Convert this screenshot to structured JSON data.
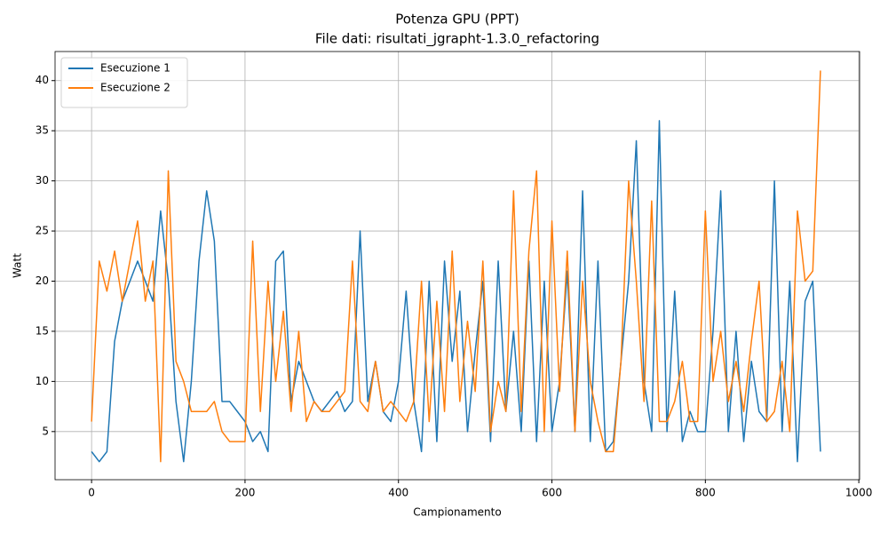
{
  "chart_data": {
    "type": "line",
    "title": "Potenza GPU (PPT)",
    "subtitle": "File dati: risultati_jgrapht-1.3.0_refactoring",
    "x_label": "Campionamento",
    "y_label": "Watt",
    "x": [
      0,
      10,
      20,
      30,
      40,
      50,
      60,
      70,
      80,
      90,
      100,
      110,
      120,
      130,
      140,
      150,
      160,
      170,
      180,
      190,
      200,
      210,
      220,
      230,
      240,
      250,
      260,
      270,
      280,
      290,
      300,
      310,
      320,
      330,
      340,
      350,
      360,
      370,
      380,
      390,
      400,
      410,
      420,
      430,
      440,
      450,
      460,
      470,
      480,
      490,
      500,
      510,
      520,
      530,
      540,
      550,
      560,
      570,
      580,
      590,
      600,
      610,
      620,
      630,
      640,
      650,
      660,
      670,
      680,
      690,
      700,
      710,
      720,
      730,
      740,
      750,
      760,
      770,
      780,
      790,
      800,
      810,
      820,
      830,
      840,
      850,
      860,
      870,
      880,
      890,
      900,
      910,
      920,
      930,
      940,
      950
    ],
    "series": [
      {
        "name": "Esecuzione 1",
        "color": "#1f77b4",
        "values": [
          3,
          2,
          3,
          14,
          18,
          20,
          22,
          20,
          18,
          27,
          20,
          8,
          2,
          10,
          22,
          29,
          24,
          8,
          8,
          7,
          6,
          4,
          5,
          3,
          22,
          23,
          8,
          12,
          10,
          8,
          7,
          8,
          9,
          7,
          8,
          25,
          8,
          12,
          7,
          6,
          10,
          19,
          8,
          3,
          20,
          4,
          22,
          12,
          19,
          5,
          13,
          20,
          4,
          22,
          7,
          15,
          5,
          22,
          4,
          20,
          5,
          10,
          21,
          5,
          29,
          4,
          22,
          3,
          4,
          12,
          20,
          34,
          10,
          5,
          36,
          5,
          19,
          4,
          7,
          5,
          5,
          15,
          29,
          5,
          15,
          4,
          12,
          7,
          6,
          30,
          5,
          20,
          2,
          18,
          20,
          3
        ]
      },
      {
        "name": "Esecuzione 2",
        "color": "#ff7f0e",
        "values": [
          6,
          22,
          19,
          23,
          18,
          22,
          26,
          18,
          22,
          2,
          31,
          12,
          10,
          7,
          7,
          7,
          8,
          5,
          4,
          4,
          4,
          24,
          7,
          20,
          10,
          17,
          7,
          15,
          6,
          8,
          7,
          7,
          8,
          9,
          22,
          8,
          7,
          12,
          7,
          8,
          7,
          6,
          8,
          20,
          6,
          18,
          7,
          23,
          8,
          16,
          9,
          22,
          5,
          10,
          7,
          29,
          7,
          23,
          31,
          5,
          26,
          9,
          23,
          5,
          20,
          10,
          6,
          3,
          3,
          12,
          30,
          20,
          8,
          28,
          6,
          6,
          8,
          12,
          6,
          6,
          27,
          10,
          15,
          8,
          12,
          7,
          14,
          20,
          6,
          7,
          12,
          5,
          27,
          20,
          21,
          41
        ]
      }
    ],
    "xlim": [
      -47.6,
      1001
    ],
    "ylim": [
      0.2,
      42.9
    ],
    "xticks": [
      0,
      200,
      400,
      600,
      800,
      1000
    ],
    "yticks": [
      5,
      10,
      15,
      20,
      25,
      30,
      35,
      40
    ],
    "grid": true,
    "legend": "upper-left"
  }
}
